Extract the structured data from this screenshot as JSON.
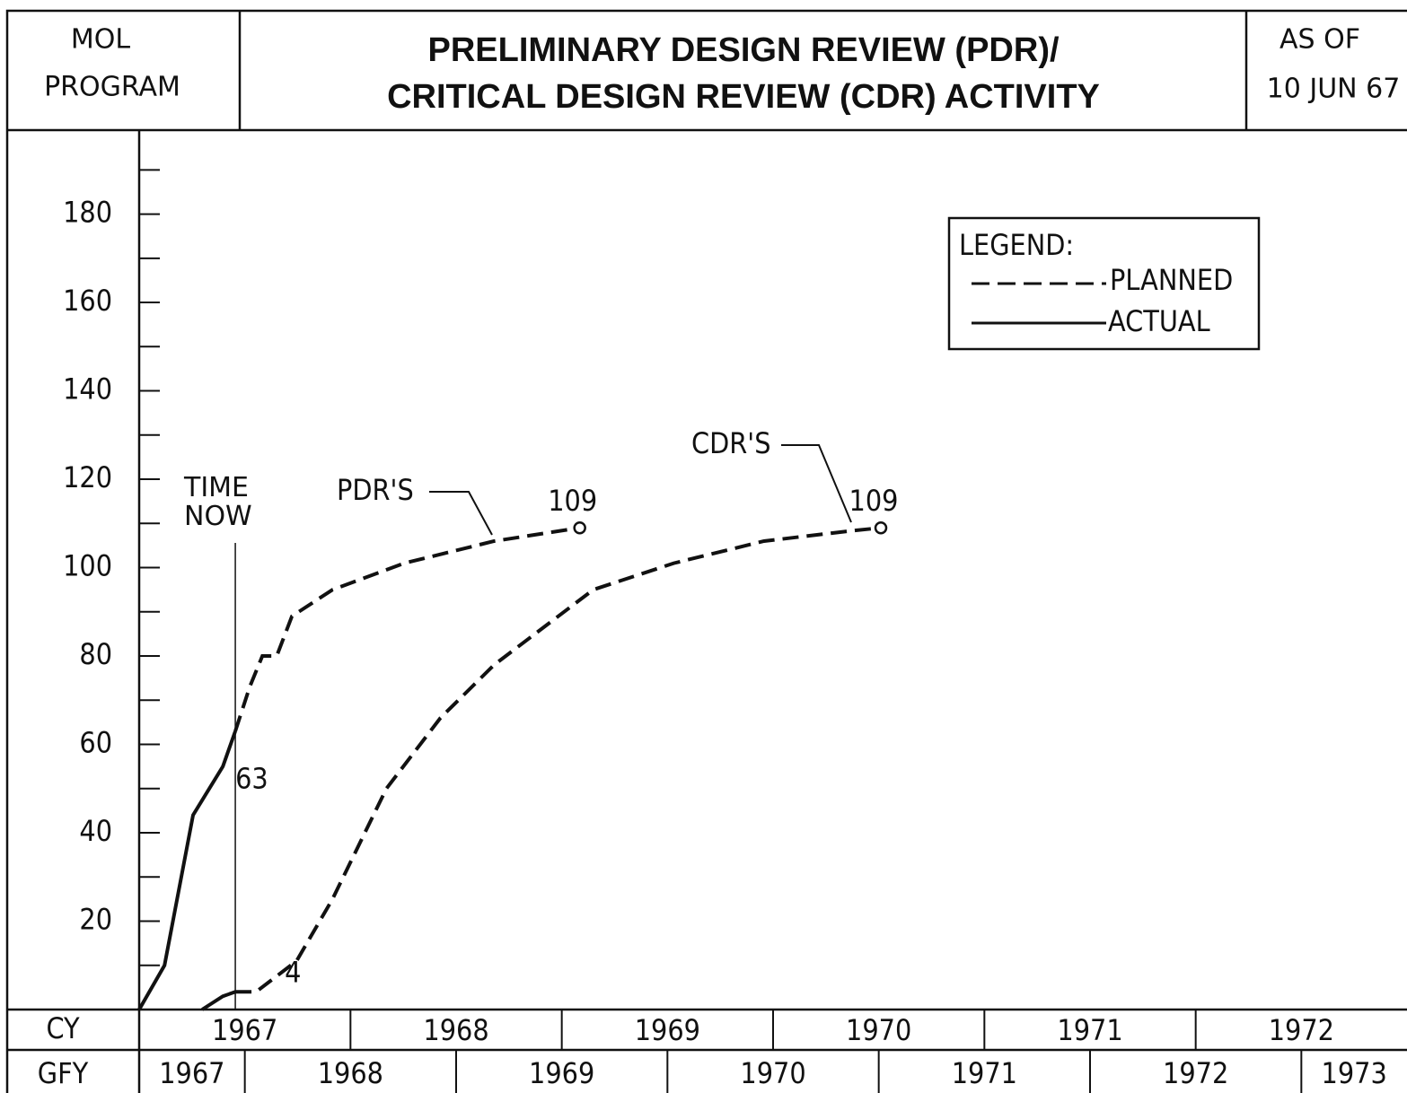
{
  "chart_data": {
    "type": "line",
    "header_left": [
      "MOL",
      "PROGRAM"
    ],
    "title": [
      "PRELIMINARY DESIGN REVIEW (PDR)/",
      "CRITICAL DESIGN REVIEW (CDR) ACTIVITY"
    ],
    "header_right": [
      "AS OF",
      "10 JUN 67"
    ],
    "xlim": [
      1967,
      1973
    ],
    "ylim": [
      0,
      199
    ],
    "yticks": [
      20,
      40,
      60,
      80,
      100,
      120,
      140,
      160,
      180
    ],
    "yticks_minor": [
      10,
      30,
      50,
      70,
      90,
      110,
      130,
      150,
      170,
      190
    ],
    "time_now": 1967.455,
    "time_now_label": "TIME NOW",
    "cy": {
      "label": "CY",
      "years": [
        1967,
        1968,
        1969,
        1970,
        1971,
        1972
      ]
    },
    "gfy": {
      "label": "GFY",
      "years": [
        1967,
        1968,
        1969,
        1970,
        1971,
        1972,
        1973
      ]
    },
    "legend": {
      "title": "LEGEND:",
      "planned": "PLANNED",
      "actual": "ACTUAL"
    },
    "color": "#111111",
    "groups": [
      {
        "name": "PDR'S",
        "actual": {
          "x": [
            1967.0,
            1967.12,
            1967.255,
            1967.396,
            1967.455
          ],
          "values": [
            0,
            10,
            44,
            55,
            63
          ],
          "value_labels": [
            null,
            null,
            null,
            null,
            "63"
          ]
        },
        "planned": {
          "x": [
            1967.455,
            1967.523,
            1967.583,
            1967.651,
            1967.723,
            1967.915,
            1968.255,
            1968.68,
            1969.085
          ],
          "values": [
            63,
            73,
            80,
            80,
            89,
            95,
            101,
            106,
            109
          ],
          "value_labels": [
            null,
            null,
            null,
            null,
            null,
            null,
            null,
            null,
            "109"
          ]
        }
      },
      {
        "name": "CDR'S",
        "actual": {
          "x": [
            1967.298,
            1967.396,
            1967.455
          ],
          "values": [
            0,
            3,
            4
          ],
          "value_labels": [
            null,
            null,
            "4"
          ]
        },
        "planned": {
          "x": [
            1967.455,
            1967.553,
            1967.745,
            1967.915,
            1968.17,
            1968.426,
            1968.68,
            1969.149,
            1969.53,
            1969.957,
            1970.383,
            1970.51
          ],
          "values": [
            4,
            4,
            11,
            25,
            50,
            66,
            78,
            95,
            101,
            106,
            108.4,
            109
          ],
          "value_labels": [
            null,
            null,
            null,
            null,
            null,
            null,
            null,
            null,
            null,
            null,
            null,
            "109"
          ]
        }
      }
    ]
  }
}
